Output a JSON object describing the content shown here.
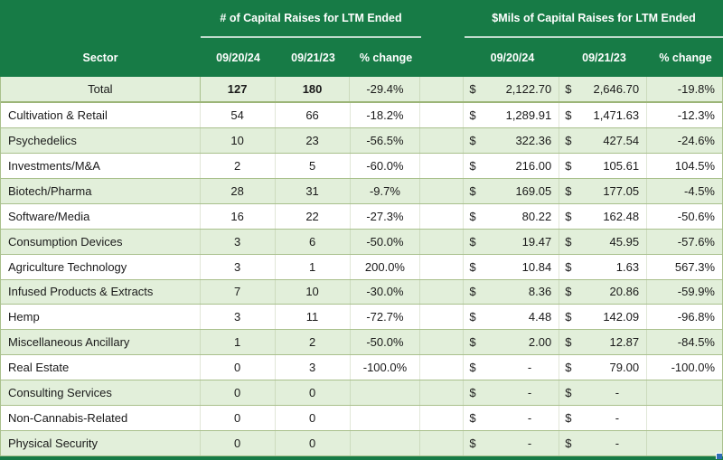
{
  "colors": {
    "header_green": "#177b46",
    "stripe_green": "#e2efda",
    "row_border_olive": "#a9c08c",
    "fill_handle_blue": "#2e6db5"
  },
  "table": {
    "currency_symbol": "$",
    "header": {
      "sector_label": "Sector",
      "groups": [
        {
          "title": "# of Capital Raises for LTM  Ended",
          "col_2024": "09/20/24",
          "col_2023": "09/21/23",
          "col_change": "% change"
        },
        {
          "title": "$Mils of Capital Raises for LTM Ended",
          "col_2024": "09/20/24",
          "col_2023": "09/21/23",
          "col_change": "% change"
        }
      ]
    },
    "rows": [
      {
        "sector": "Total",
        "raises_0920_24": "127",
        "raises_0921_23": "180",
        "raises_change": "-29.4%",
        "mils_0920_24": "2,122.70",
        "mils_0921_23": "2,646.70",
        "mils_change": "-19.8%"
      },
      {
        "sector": "Cultivation & Retail",
        "raises_0920_24": "54",
        "raises_0921_23": "66",
        "raises_change": "-18.2%",
        "mils_0920_24": "1,289.91",
        "mils_0921_23": "1,471.63",
        "mils_change": "-12.3%"
      },
      {
        "sector": "Psychedelics",
        "raises_0920_24": "10",
        "raises_0921_23": "23",
        "raises_change": "-56.5%",
        "mils_0920_24": "322.36",
        "mils_0921_23": "427.54",
        "mils_change": "-24.6%"
      },
      {
        "sector": "Investments/M&A",
        "raises_0920_24": "2",
        "raises_0921_23": "5",
        "raises_change": "-60.0%",
        "mils_0920_24": "216.00",
        "mils_0921_23": "105.61",
        "mils_change": "104.5%"
      },
      {
        "sector": "Biotech/Pharma",
        "raises_0920_24": "28",
        "raises_0921_23": "31",
        "raises_change": "-9.7%",
        "mils_0920_24": "169.05",
        "mils_0921_23": "177.05",
        "mils_change": "-4.5%"
      },
      {
        "sector": "Software/Media",
        "raises_0920_24": "16",
        "raises_0921_23": "22",
        "raises_change": "-27.3%",
        "mils_0920_24": "80.22",
        "mils_0921_23": "162.48",
        "mils_change": "-50.6%"
      },
      {
        "sector": "Consumption Devices",
        "raises_0920_24": "3",
        "raises_0921_23": "6",
        "raises_change": "-50.0%",
        "mils_0920_24": "19.47",
        "mils_0921_23": "45.95",
        "mils_change": "-57.6%"
      },
      {
        "sector": "Agriculture Technology",
        "raises_0920_24": "3",
        "raises_0921_23": "1",
        "raises_change": "200.0%",
        "mils_0920_24": "10.84",
        "mils_0921_23": "1.63",
        "mils_change": "567.3%"
      },
      {
        "sector": "Infused Products & Extracts",
        "raises_0920_24": "7",
        "raises_0921_23": "10",
        "raises_change": "-30.0%",
        "mils_0920_24": "8.36",
        "mils_0921_23": "20.86",
        "mils_change": "-59.9%"
      },
      {
        "sector": "Hemp",
        "raises_0920_24": "3",
        "raises_0921_23": "11",
        "raises_change": "-72.7%",
        "mils_0920_24": "4.48",
        "mils_0921_23": "142.09",
        "mils_change": "-96.8%"
      },
      {
        "sector": "Miscellaneous Ancillary",
        "raises_0920_24": "1",
        "raises_0921_23": "2",
        "raises_change": "-50.0%",
        "mils_0920_24": "2.00",
        "mils_0921_23": "12.87",
        "mils_change": "-84.5%"
      },
      {
        "sector": "Real Estate",
        "raises_0920_24": "0",
        "raises_0921_23": "3",
        "raises_change": "-100.0%",
        "mils_0920_24": "-",
        "mils_0921_23": "79.00",
        "mils_change": "-100.0%"
      },
      {
        "sector": "Consulting Services",
        "raises_0920_24": "0",
        "raises_0921_23": "0",
        "raises_change": "",
        "mils_0920_24": "-",
        "mils_0921_23": "-",
        "mils_change": ""
      },
      {
        "sector": "Non-Cannabis-Related",
        "raises_0920_24": "0",
        "raises_0921_23": "0",
        "raises_change": "",
        "mils_0920_24": "-",
        "mils_0921_23": "-",
        "mils_change": ""
      },
      {
        "sector": "Physical Security",
        "raises_0920_24": "0",
        "raises_0921_23": "0",
        "raises_change": "",
        "mils_0920_24": "-",
        "mils_0921_23": "-",
        "mils_change": ""
      }
    ]
  }
}
